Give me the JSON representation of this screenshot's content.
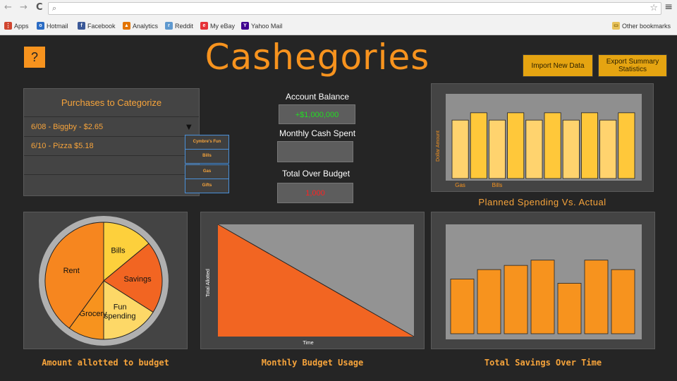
{
  "browser": {
    "back_glyph": "←",
    "forward_glyph": "→",
    "reload_glyph": "C",
    "bookmarks": [
      {
        "label": "Apps",
        "icon": "apps-grid-icon",
        "color": "#d0452f"
      },
      {
        "label": "Hotmail",
        "icon": "hotmail-icon",
        "color": "#2b6cc4"
      },
      {
        "label": "Facebook",
        "icon": "facebook-icon",
        "color": "#3b5998"
      },
      {
        "label": "Analytics",
        "icon": "analytics-icon",
        "color": "#e37400"
      },
      {
        "label": "Reddit",
        "icon": "reddit-icon",
        "color": "#5f99cf"
      },
      {
        "label": "My eBay",
        "icon": "ebay-icon",
        "color": "#e53238"
      },
      {
        "label": "Yahoo Mail",
        "icon": "yahoo-icon",
        "color": "#400090"
      }
    ],
    "other_bookmarks": "Other bookmarks"
  },
  "app": {
    "help_label": "?",
    "title": "Cashegories",
    "import_label": "Import New Data",
    "export_label": "Export Summary Statistics"
  },
  "purchases": {
    "title": "Purchases to Categorize",
    "rows": [
      "6/08 - Biggby - $2.65",
      "6/10 - Pizza $5.18",
      "",
      ""
    ],
    "categories": [
      "Cymbre's Fun",
      "Bills",
      "Gas",
      "Gifts"
    ]
  },
  "stats": {
    "balance_label": "Account Balance",
    "balance_value": "+$1,000,000",
    "spent_label": "Monthly Cash Spent",
    "spent_value": "",
    "over_label": "Total Over Budget",
    "over_value": "1,000"
  },
  "colors": {
    "accent": "#f7931e",
    "balance_green": "#22dd22",
    "over_red": "#ff2222",
    "button_gold": "#e5a411"
  },
  "captions": {
    "planned": "Planned Spending Vs. Actual",
    "allotted": "Amount allotted to budget",
    "usage": "Monthly Budget Usage",
    "savings": "Total Savings Over Time"
  },
  "chart_data": [
    {
      "type": "bar",
      "title": "Planned Spending Vs. Actual",
      "ylabel": "Dollar Amount",
      "categories": [
        "Gas",
        "",
        "Bills",
        "",
        "",
        "",
        "",
        "",
        "",
        ""
      ],
      "values": [
        72,
        81,
        72,
        81,
        72,
        81,
        72,
        81,
        72,
        81
      ],
      "ylim": [
        0,
        100
      ]
    },
    {
      "type": "pie",
      "title": "Amount allotted to budget",
      "labels": [
        "Bills",
        "Savings",
        "Fun spending",
        "Grocery",
        "Rent"
      ],
      "values": [
        14,
        20,
        16,
        10,
        40
      ]
    },
    {
      "type": "area",
      "title": "Monthly Budget Usage",
      "xlabel": "Time",
      "ylabel": "Total Allotted",
      "x": [
        0,
        1
      ],
      "y": [
        100,
        0
      ],
      "ylim": [
        0,
        100
      ]
    },
    {
      "type": "bar",
      "title": "Total Savings Over Time",
      "values": [
        52,
        61,
        65,
        70,
        48,
        70,
        61
      ],
      "ylim": [
        0,
        100
      ]
    }
  ]
}
